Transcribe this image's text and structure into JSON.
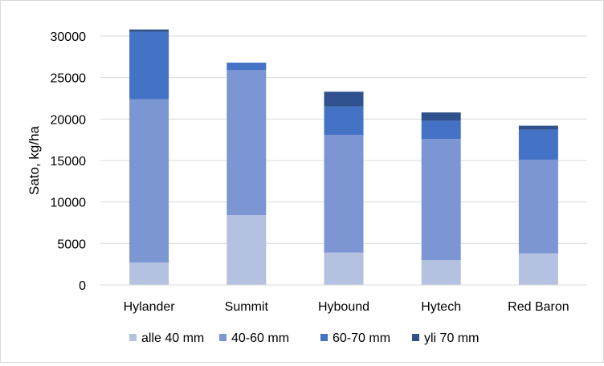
{
  "chart_data": {
    "type": "bar",
    "stacked": true,
    "title": "",
    "xlabel": "",
    "ylabel": "Sato, kg/ha",
    "ylim": [
      0,
      30000
    ],
    "yticks": [
      0,
      5000,
      10000,
      15000,
      20000,
      25000,
      30000
    ],
    "grid": true,
    "legend_position": "bottom",
    "categories": [
      "Hylander",
      "Summit",
      "Hybound",
      "Hytech",
      "Red Baron"
    ],
    "series": [
      {
        "name": "alle 40 mm",
        "color": "#b4c1e1",
        "values": [
          2700,
          8400,
          3900,
          3000,
          3800
        ]
      },
      {
        "name": "40-60 mm",
        "color": "#7b96d2",
        "values": [
          19700,
          17500,
          14200,
          14600,
          11300
        ]
      },
      {
        "name": "60-70 mm",
        "color": "#4472c4",
        "values": [
          8100,
          900,
          3400,
          2200,
          3600
        ]
      },
      {
        "name": "yli 70 mm",
        "color": "#2f528f",
        "values": [
          300,
          0,
          1800,
          1000,
          500
        ]
      }
    ]
  }
}
